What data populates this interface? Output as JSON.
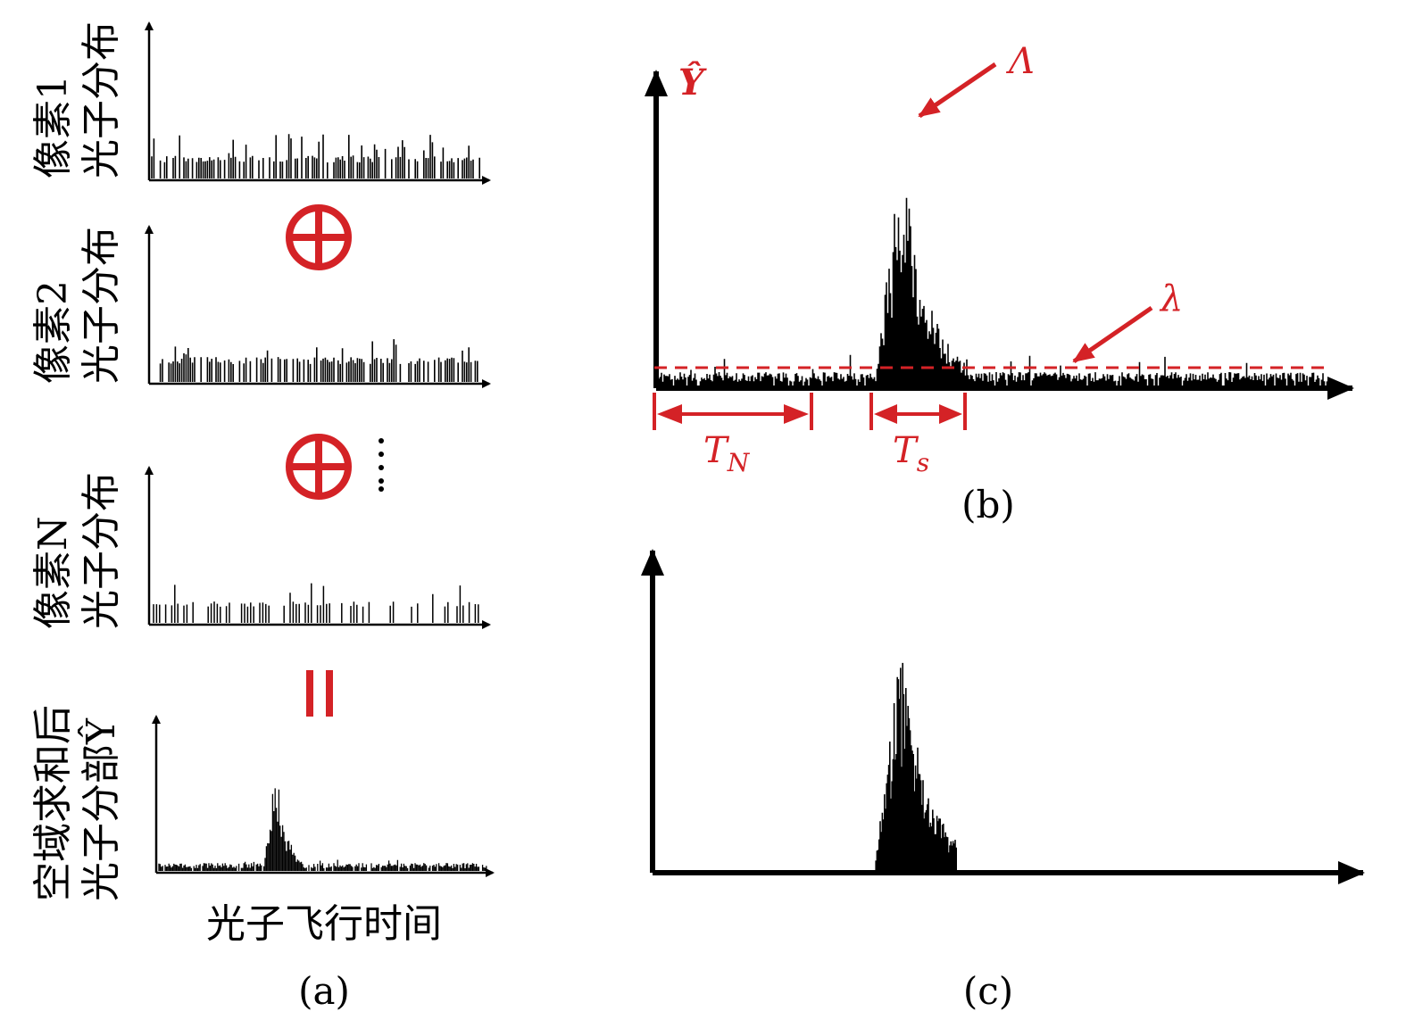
{
  "panel_a": {
    "rows": [
      {
        "line1": "像素1",
        "line2": "光子分布"
      },
      {
        "line1": "像素2",
        "line2": "光子分布"
      },
      {
        "line1": "像素N",
        "line2": "光子分布"
      },
      {
        "line1": "空域求和后",
        "line2": "光子分部Ŷ"
      }
    ],
    "x_axis_label": "光子飞行时间",
    "operators": [
      "⊕",
      "⊕",
      "||"
    ],
    "ellipsis": "⋮",
    "caption": "(a)"
  },
  "panel_b": {
    "y_label": "Ŷ",
    "peak_label": "Λ",
    "noise_label": "λ",
    "TN_main": "T",
    "TN_sub": "N",
    "Ts_main": "T",
    "Ts_sub": "s",
    "caption": "(b)"
  },
  "panel_c": {
    "caption": "(c)"
  },
  "colors": {
    "annotation": "#d42226",
    "trace": "#000000"
  }
}
